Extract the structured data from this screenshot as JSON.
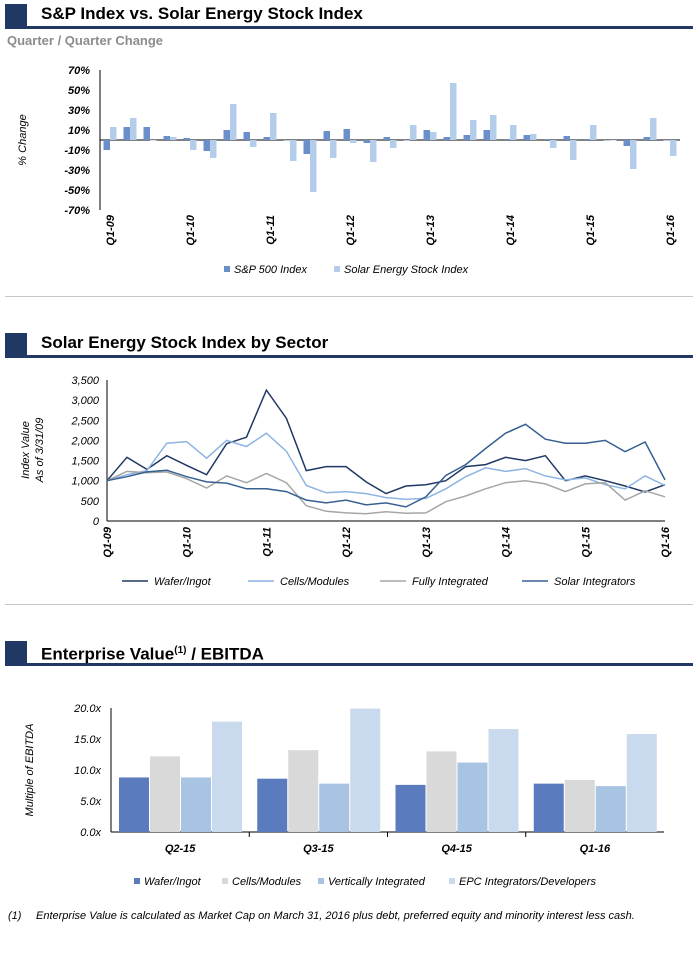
{
  "section1": {
    "title": "S&P Index vs. Solar Energy Stock Index",
    "subtitle": "Quarter / Quarter Change"
  },
  "section2": {
    "title": "Solar Energy Stock Index by Sector"
  },
  "section3": {
    "title": "Enterprise Value",
    "title_sup": "(1)",
    "title_suffix": " / EBITDA"
  },
  "footnote": {
    "marker": "(1)",
    "text": "Enterprise Value is calculated as Market Cap on March 31, 2016 plus debt, preferred equity and minority interest less cash."
  },
  "colors": {
    "heading_bar": "#1f3864",
    "sp500": "#6b8fc9",
    "solar_index": "#b4cdea",
    "wafer": "#1f3864",
    "cells": "#8db4e2",
    "fully_integrated": "#a6a6a6",
    "solar_integrators": "#366092",
    "ev_wafer": "#5b7bbf",
    "ev_cells": "#d9d9d9",
    "ev_vertical": "#a9c4e2",
    "ev_epc": "#c9d9ee"
  },
  "chart_data": [
    {
      "type": "bar",
      "ylabel": "% Change",
      "ylim": [
        -70,
        70
      ],
      "yticks": [
        "70%",
        "50%",
        "30%",
        "10%",
        "-10%",
        "-30%",
        "-50%",
        "-70%"
      ],
      "ytick_values": [
        70,
        50,
        30,
        10,
        -10,
        -30,
        -50,
        -70
      ],
      "tick_labels": [
        "Q1-09",
        "Q1-10",
        "Q1-11",
        "Q1-12",
        "Q1-13",
        "Q1-14",
        "Q1-15",
        "Q1-16"
      ],
      "categories": [
        "Q1-09",
        "Q2-09",
        "Q3-09",
        "Q4-09",
        "Q1-10",
        "Q2-10",
        "Q3-10",
        "Q4-10",
        "Q1-11",
        "Q2-11",
        "Q3-11",
        "Q4-11",
        "Q1-12",
        "Q2-12",
        "Q3-12",
        "Q4-12",
        "Q1-13",
        "Q2-13",
        "Q3-13",
        "Q4-13",
        "Q1-14",
        "Q2-14",
        "Q3-14",
        "Q4-14",
        "Q1-15",
        "Q2-15",
        "Q3-15",
        "Q4-15",
        "Q1-16"
      ],
      "series": [
        {
          "name": "S&P 500 Index",
          "values": [
            -10,
            13,
            13,
            4,
            2,
            -11,
            10,
            8,
            3,
            0,
            -14,
            9,
            11,
            -3,
            3,
            0,
            10,
            3,
            5,
            10,
            1,
            5,
            1,
            4,
            1,
            0,
            -6,
            3,
            0
          ]
        },
        {
          "name": "Solar Energy Stock Index",
          "values": [
            13,
            22,
            0,
            3,
            -10,
            -18,
            36,
            -7,
            27,
            -21,
            -52,
            -18,
            -3,
            -22,
            -8,
            15,
            8,
            57,
            20,
            25,
            15,
            6,
            -8,
            -20,
            15,
            0,
            -29,
            22,
            -16
          ]
        }
      ],
      "legend_position": "bottom"
    },
    {
      "type": "line",
      "ylabel": "Index Value\nAs of 3/31/09",
      "ylim": [
        0,
        3500
      ],
      "yticks": [
        "3,500",
        "3,000",
        "2,500",
        "2,000",
        "1,500",
        "1,000",
        "500",
        "0"
      ],
      "ytick_values": [
        3500,
        3000,
        2500,
        2000,
        1500,
        1000,
        500,
        0
      ],
      "tick_labels": [
        "Q1-09",
        "Q1-10",
        "Q1-11",
        "Q1-12",
        "Q1-13",
        "Q1-14",
        "Q1-15",
        "Q1-16"
      ],
      "series": [
        {
          "name": "Wafer/Ingot",
          "values": [
            1000,
            1580,
            1280,
            1620,
            1380,
            1150,
            1920,
            2080,
            3250,
            2550,
            1250,
            1350,
            1350,
            970,
            680,
            870,
            900,
            1000,
            1350,
            1400,
            1580,
            1500,
            1620,
            1000,
            1120,
            1000,
            870,
            720,
            900
          ]
        },
        {
          "name": "Cells/Modules",
          "values": [
            1000,
            1150,
            1250,
            1930,
            1970,
            1560,
            2000,
            1850,
            2180,
            1730,
            880,
            700,
            730,
            680,
            580,
            540,
            560,
            800,
            1100,
            1320,
            1230,
            1300,
            1120,
            1020,
            1070,
            900,
            800,
            1120,
            880
          ]
        },
        {
          "name": "Fully Integrated",
          "values": [
            1000,
            1230,
            1200,
            1220,
            1050,
            820,
            1120,
            950,
            1180,
            950,
            380,
            240,
            200,
            180,
            230,
            190,
            200,
            480,
            620,
            800,
            950,
            1000,
            920,
            730,
            920,
            950,
            520,
            750,
            600
          ]
        },
        {
          "name": "Solar Integrators",
          "values": [
            1000,
            1100,
            1220,
            1260,
            1100,
            970,
            940,
            800,
            800,
            730,
            520,
            450,
            520,
            400,
            450,
            350,
            600,
            1130,
            1400,
            1800,
            2180,
            2400,
            2030,
            1930,
            1930,
            2000,
            1720,
            1960,
            1020
          ]
        }
      ],
      "legend_position": "bottom"
    },
    {
      "type": "bar",
      "ylabel": "Multiple of EBITDA",
      "ylim": [
        0,
        20
      ],
      "yticks": [
        "20.0x",
        "15.0x",
        "10.0x",
        "5.0x",
        "0.0x"
      ],
      "ytick_values": [
        20,
        15,
        10,
        5,
        0
      ],
      "categories": [
        "Q2-15",
        "Q3-15",
        "Q4-15",
        "Q1-16"
      ],
      "series": [
        {
          "name": "Wafer/Ingot",
          "values": [
            8.8,
            8.6,
            7.6,
            7.8
          ]
        },
        {
          "name": "Cells/Modules",
          "values": [
            12.2,
            13.2,
            13.0,
            8.4
          ]
        },
        {
          "name": "Vertically Integrated",
          "values": [
            8.8,
            7.8,
            11.2,
            7.4
          ]
        },
        {
          "name": "EPC Integrators/Developers",
          "values": [
            17.8,
            19.9,
            16.6,
            15.8
          ]
        }
      ],
      "legend_position": "bottom"
    }
  ]
}
